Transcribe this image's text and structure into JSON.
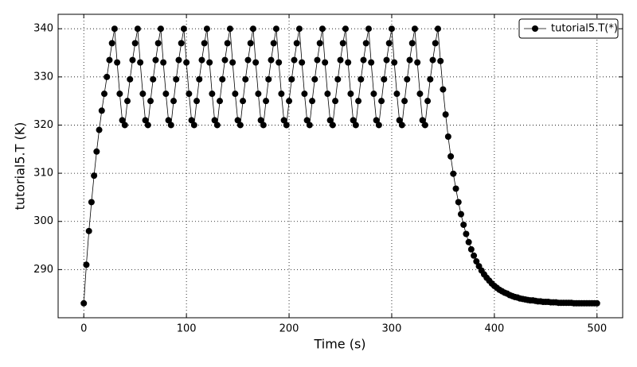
{
  "chart_data": {
    "type": "line",
    "xlabel": "Time (s)",
    "ylabel": "tutorial5.T (K)",
    "x": [
      0,
      2.5,
      5,
      7.5,
      10,
      12.5,
      15,
      17.5,
      20,
      22.5,
      25,
      27.5,
      30,
      32.5,
      35,
      37.5,
      40,
      42.5,
      45,
      47.5,
      50,
      52.5,
      55,
      57.5,
      60,
      62.5,
      65,
      67.5,
      70,
      72.5,
      75,
      77.5,
      80,
      82.5,
      85,
      87.5,
      90,
      92.5,
      95,
      97.5,
      100,
      102.5,
      105,
      107.5,
      110,
      112.5,
      115,
      117.5,
      120,
      122.5,
      125,
      127.5,
      130,
      132.5,
      135,
      137.5,
      140,
      142.5,
      145,
      147.5,
      150,
      152.5,
      155,
      157.5,
      160,
      162.5,
      165,
      167.5,
      170,
      172.5,
      175,
      177.5,
      180,
      182.5,
      185,
      187.5,
      190,
      192.5,
      195,
      197.5,
      200,
      202.5,
      205,
      207.5,
      210,
      212.5,
      215,
      217.5,
      220,
      222.5,
      225,
      227.5,
      230,
      232.5,
      235,
      237.5,
      240,
      242.5,
      245,
      247.5,
      250,
      252.5,
      255,
      257.5,
      260,
      262.5,
      265,
      267.5,
      270,
      272.5,
      275,
      277.5,
      280,
      282.5,
      285,
      287.5,
      290,
      292.5,
      295,
      297.5,
      300,
      302.5,
      305,
      307.5,
      310,
      312.5,
      315,
      317.5,
      320,
      322.5,
      325,
      327.5,
      330,
      332.5,
      335,
      337.5,
      340,
      342.5,
      345,
      347.5,
      350,
      352.5,
      355,
      357.5,
      360,
      362.5,
      365,
      367.5,
      370,
      372.5,
      375,
      377.5,
      380,
      382.5,
      385,
      387.5,
      390,
      392.5,
      395,
      397.5,
      400,
      402.5,
      405,
      407.5,
      410,
      412.5,
      415,
      417.5,
      420,
      422.5,
      425,
      427.5,
      430,
      432.5,
      435,
      437.5,
      440,
      442.5,
      445,
      447.5,
      450,
      452.5,
      455,
      457.5,
      460,
      462.5,
      465,
      467.5,
      470,
      472.5,
      475,
      477.5,
      480,
      482.5,
      485,
      487.5,
      490,
      492.5,
      495,
      497.5,
      500
    ],
    "series": [
      {
        "name": "tutorial5.T(*)",
        "color": "#000000",
        "values": [
          283,
          291,
          298,
          304,
          309.5,
          314.5,
          319,
          323,
          326.5,
          330,
          333.5,
          337,
          340,
          333,
          326.5,
          321,
          320,
          325,
          329.5,
          333.5,
          337,
          340,
          333,
          326.5,
          321,
          320,
          325,
          329.5,
          333.5,
          337,
          340,
          333,
          326.5,
          321,
          320,
          325,
          329.5,
          333.5,
          337,
          340,
          333,
          326.5,
          321,
          320,
          325,
          329.5,
          333.5,
          337,
          340,
          333,
          326.5,
          321,
          320,
          325,
          329.5,
          333.5,
          337,
          340,
          333,
          326.5,
          321,
          320,
          325,
          329.5,
          333.5,
          337,
          340,
          333,
          326.5,
          321,
          320,
          325,
          329.5,
          333.5,
          337,
          340,
          333,
          326.5,
          321,
          320,
          325,
          329.5,
          333.5,
          337,
          340,
          333,
          326.5,
          321,
          320,
          325,
          329.5,
          333.5,
          337,
          340,
          333,
          326.5,
          321,
          320,
          325,
          329.5,
          333.5,
          337,
          340,
          333,
          326.5,
          321,
          320,
          325,
          329.5,
          333.5,
          337,
          340,
          333,
          326.5,
          321,
          320,
          325,
          329.5,
          333.5,
          337,
          340,
          333,
          326.5,
          321,
          320,
          325,
          329.5,
          333.5,
          337,
          340,
          333,
          326.5,
          321,
          320,
          325,
          329.5,
          333.5,
          337,
          340,
          333.3,
          327.4,
          322.2,
          317.6,
          313.5,
          309.9,
          306.8,
          304.0,
          301.5,
          299.3,
          297.4,
          295.7,
          294.2,
          292.9,
          291.7,
          290.7,
          289.8,
          289.0,
          288.3,
          287.7,
          287.1,
          286.6,
          286.2,
          285.8,
          285.5,
          285.2,
          285.0,
          284.7,
          284.5,
          284.3,
          284.2,
          284.0,
          283.9,
          283.8,
          283.7,
          283.6,
          283.6,
          283.5,
          283.4,
          283.4,
          283.3,
          283.3,
          283.3,
          283.2,
          283.2,
          283.2,
          283.1,
          283.1,
          283.1,
          283.1,
          283.1,
          283.1,
          283,
          283,
          283,
          283,
          283,
          283,
          283,
          283,
          283,
          283
        ]
      }
    ],
    "xlim": [
      -25,
      525
    ],
    "xticks": [
      0,
      100,
      200,
      300,
      400,
      500
    ],
    "ylim": [
      280,
      343
    ],
    "yticks": [
      290,
      300,
      310,
      320,
      330,
      340
    ],
    "grid": true,
    "legend": "upper right"
  }
}
